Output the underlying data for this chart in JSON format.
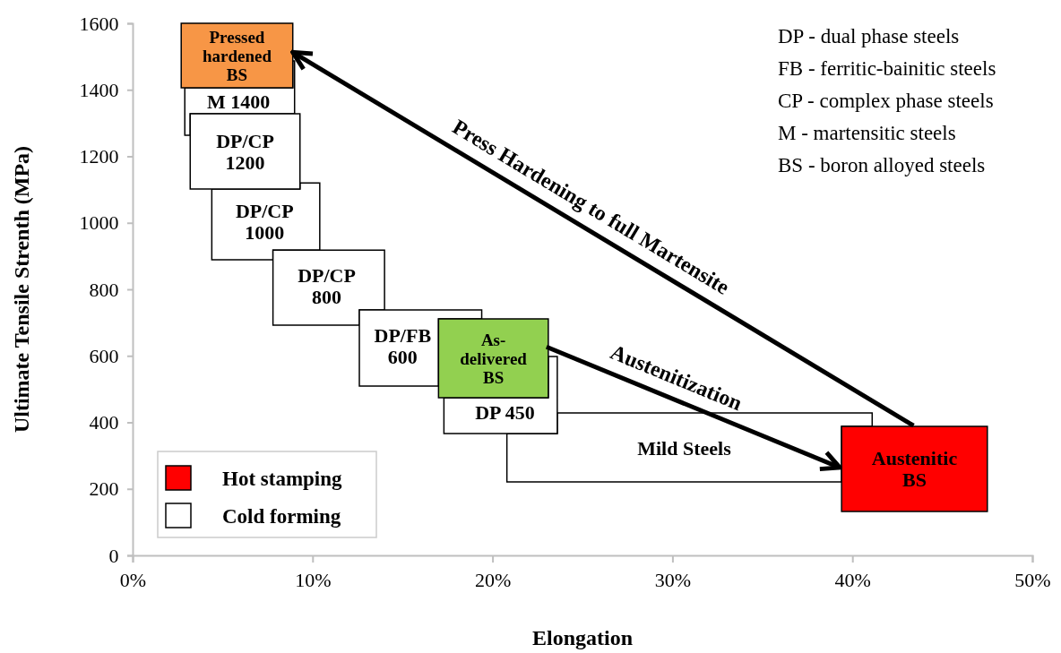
{
  "chart_data": {
    "type": "line",
    "xlabel": "Elongation",
    "ylabel": "Ultimate Tensile Strenth (MPa)",
    "xlim": [
      0,
      50
    ],
    "xticks": [
      {
        "value": 0,
        "label": "0%"
      },
      {
        "value": 10,
        "label": "10%"
      },
      {
        "value": 20,
        "label": "20%"
      },
      {
        "value": 30,
        "label": "30%"
      },
      {
        "value": 40,
        "label": "40%"
      },
      {
        "value": 50,
        "label": "50%"
      }
    ],
    "ylim": [
      0,
      1600
    ],
    "yticks": [
      0,
      200,
      400,
      600,
      800,
      1000,
      1200,
      1400,
      1600
    ],
    "series": [
      {
        "type": "area",
        "name": "Mild Steels",
        "color": "#ffffff",
        "x": [
          23.6,
          41.1,
          41.1,
          39.4,
          39.4,
          20.8,
          20.8,
          23.6
        ],
        "values": [
          428,
          428,
          388,
          388,
          221,
          221,
          366,
          366
        ]
      },
      {
        "type": "area",
        "name": "Austenitic\nBS",
        "color": "#ff0000",
        "x": [
          39.4,
          47.5,
          47.5,
          39.4
        ],
        "values": [
          132,
          132,
          388,
          388
        ]
      },
      {
        "type": "area",
        "name": "M 1400",
        "color": "#ffffff",
        "x": [
          2.9,
          3.2,
          3.2,
          9,
          9,
          8.9,
          8.9,
          2.9
        ],
        "values": [
          1263,
          1263,
          1328,
          1328,
          1487,
          1487,
          1406,
          1406
        ]
      },
      {
        "type": "area",
        "name": "DP/CP\n1000",
        "color": "#ffffff",
        "x": [
          4.4,
          7.8,
          7.8,
          10.4,
          10.4,
          9.3,
          9.3,
          4.4
        ],
        "values": [
          889,
          889,
          918,
          918,
          1120,
          1120,
          1102,
          1102
        ]
      },
      {
        "type": "area",
        "name": "DP/CP\n1200",
        "color": "#ffffff",
        "x": [
          3.2,
          9.3,
          9.3,
          3.2
        ],
        "values": [
          1102,
          1102,
          1328,
          1328
        ]
      },
      {
        "type": "area",
        "name": "DP/CP\n800",
        "color": "#ffffff",
        "x": [
          7.8,
          12.6,
          12.6,
          14,
          14,
          7.8
        ],
        "values": [
          692,
          692,
          738,
          738,
          918,
          918
        ]
      },
      {
        "type": "area",
        "name": "DP/FB\n600",
        "color": "#ffffff",
        "x": [
          12.6,
          17,
          17,
          19.4,
          19.4,
          12.6
        ],
        "values": [
          509,
          509,
          711,
          711,
          738,
          738
        ]
      },
      {
        "type": "area",
        "name": "DP 450",
        "color": "#ffffff",
        "x": [
          17.3,
          23.6,
          23.6,
          23.1,
          23.1,
          17.3
        ],
        "values": [
          366,
          366,
          598,
          598,
          474,
          474
        ]
      },
      {
        "type": "area",
        "name": "As-\ndelivered\nBS",
        "color": "#92d050",
        "x": [
          17,
          23.1,
          23.1,
          17
        ],
        "values": [
          474,
          474,
          711,
          711
        ]
      },
      {
        "type": "area",
        "name": "Pressed\nhardened\nBS",
        "color": "#f79646",
        "x": [
          2.7,
          8.9,
          8.9,
          2.7
        ],
        "values": [
          1406,
          1406,
          1600,
          1600
        ]
      },
      {
        "name": "Press Hardening to full Martensite",
        "color": "#000000",
        "x": [
          43.4,
          8.9
        ],
        "values": [
          390,
          1513
        ]
      },
      {
        "name": "Austenitization",
        "color": "#000000",
        "x": [
          23,
          39.3
        ],
        "values": [
          627,
          264
        ]
      }
    ],
    "annotations": [
      "DP - dual phase steels",
      "FB - ferritic-bainitic steels",
      "CP - complex phase steels",
      "M - martensitic steels",
      "BS - boron alloyed steels",
      "Hot stamping",
      "Cold forming"
    ]
  }
}
